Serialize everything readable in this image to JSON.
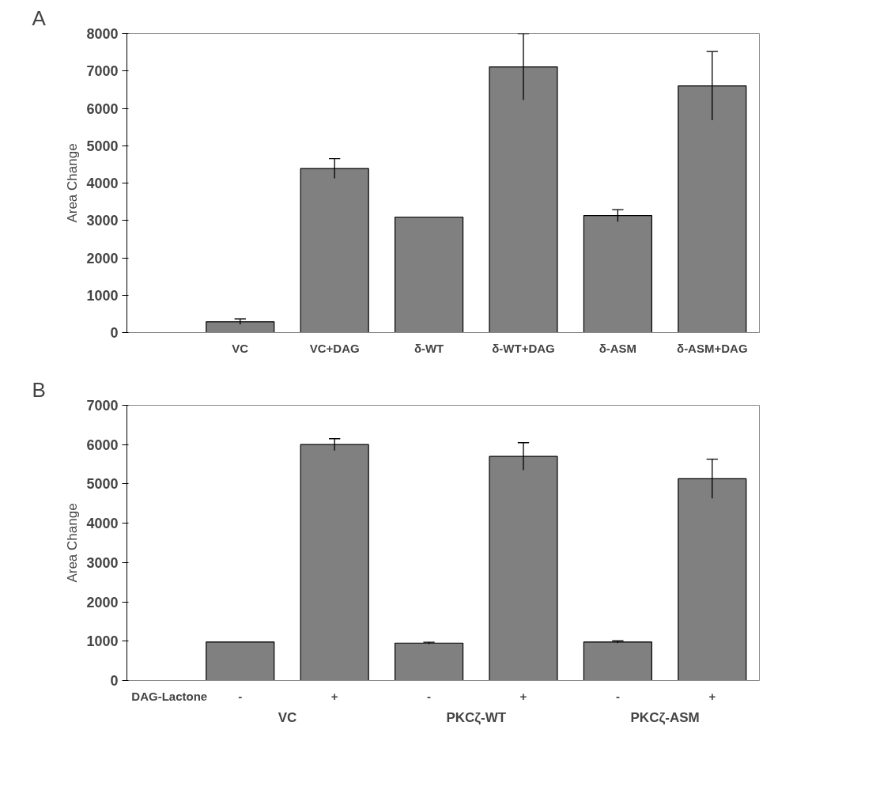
{
  "chart_data": [
    {
      "type": "bar",
      "title": "A",
      "ylabel": "Area Change",
      "categories": [
        "VC",
        "VC+DAG",
        "δ-WT",
        "δ-WT+DAG",
        "δ-ASM",
        "δ-ASM+DAG"
      ],
      "values": [
        290,
        4390,
        3090,
        7110,
        3130,
        6600
      ],
      "errors": [
        75,
        265,
        null,
        890,
        160,
        920
      ],
      "color": "#808080",
      "ylim": [
        0,
        8000
      ],
      "yticks": [
        0,
        1000,
        2000,
        3000,
        4000,
        5000,
        6000,
        7000,
        8000
      ],
      "grid": false
    },
    {
      "type": "bar",
      "title": "B",
      "ylabel": "Area Change",
      "categories": [
        "-",
        "+",
        "-",
        "+",
        "-",
        "+"
      ],
      "values": [
        980,
        6000,
        950,
        5700,
        980,
        5130
      ],
      "errors": [
        null,
        150,
        25,
        350,
        30,
        500
      ],
      "color": "#808080",
      "ylim": [
        0,
        7000
      ],
      "yticks": [
        0,
        1000,
        2000,
        3000,
        4000,
        5000,
        6000,
        7000
      ],
      "grid": false,
      "annotations": [
        "DAG-Lactone",
        "VC",
        "PKCζ-WT",
        "PKCζ-ASM"
      ]
    }
  ]
}
